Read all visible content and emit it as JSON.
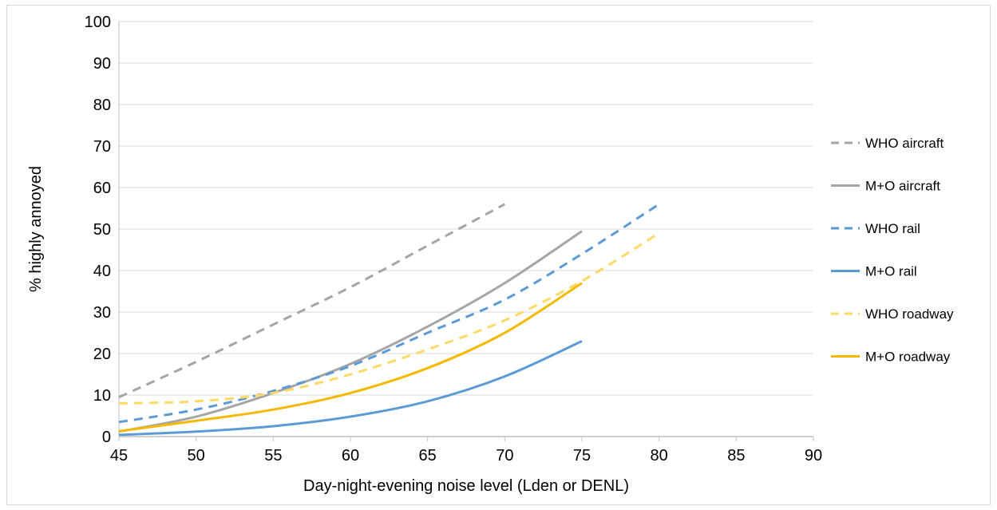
{
  "chart_data": {
    "type": "line",
    "title": "",
    "xlabel": "Day-night-evening noise level (Lden or DENL)",
    "ylabel": "% highly annoyed",
    "xlim": [
      45,
      90
    ],
    "ylim": [
      0,
      100
    ],
    "x_ticks": [
      "45",
      "50",
      "55",
      "60",
      "65",
      "70",
      "75",
      "80",
      "85",
      "90"
    ],
    "y_ticks": [
      "0",
      "10",
      "20",
      "30",
      "40",
      "50",
      "60",
      "70",
      "80",
      "90",
      "100"
    ],
    "grid": "horizontal",
    "legend_position": "right",
    "series": [
      {
        "name": "WHO aircraft",
        "color": "#a5a5a5",
        "dashed": true,
        "x": [
          45,
          50,
          55,
          60,
          65,
          70
        ],
        "y": [
          9.5,
          18,
          27,
          36,
          46,
          56
        ]
      },
      {
        "name": "M+O aircraft",
        "color": "#a5a5a5",
        "dashed": false,
        "x": [
          45,
          50,
          55,
          60,
          65,
          70,
          75
        ],
        "y": [
          1.2,
          4.8,
          10.5,
          17.5,
          26.5,
          37,
          49.5
        ]
      },
      {
        "name": "WHO rail",
        "color": "#5b9bd5",
        "dashed": true,
        "x": [
          45,
          50,
          55,
          60,
          65,
          70,
          75,
          80
        ],
        "y": [
          3.5,
          6.5,
          11,
          17,
          25,
          33,
          44,
          56
        ]
      },
      {
        "name": "M+O rail",
        "color": "#5b9bd5",
        "dashed": false,
        "x": [
          45,
          50,
          55,
          60,
          65,
          70,
          75
        ],
        "y": [
          0.4,
          1.2,
          2.5,
          4.8,
          8.5,
          14.5,
          23
        ]
      },
      {
        "name": "WHO roadway",
        "color": "#ffd966",
        "dashed": true,
        "x": [
          45,
          50,
          55,
          60,
          65,
          70,
          75,
          80
        ],
        "y": [
          8,
          8.5,
          10.5,
          15,
          21,
          28,
          37.5,
          49
        ]
      },
      {
        "name": "M+O roadway",
        "color": "#f5b800",
        "dashed": false,
        "x": [
          45,
          50,
          55,
          60,
          65,
          70,
          75
        ],
        "y": [
          1.3,
          3.8,
          6.5,
          10.5,
          16.5,
          25,
          37
        ]
      }
    ]
  }
}
